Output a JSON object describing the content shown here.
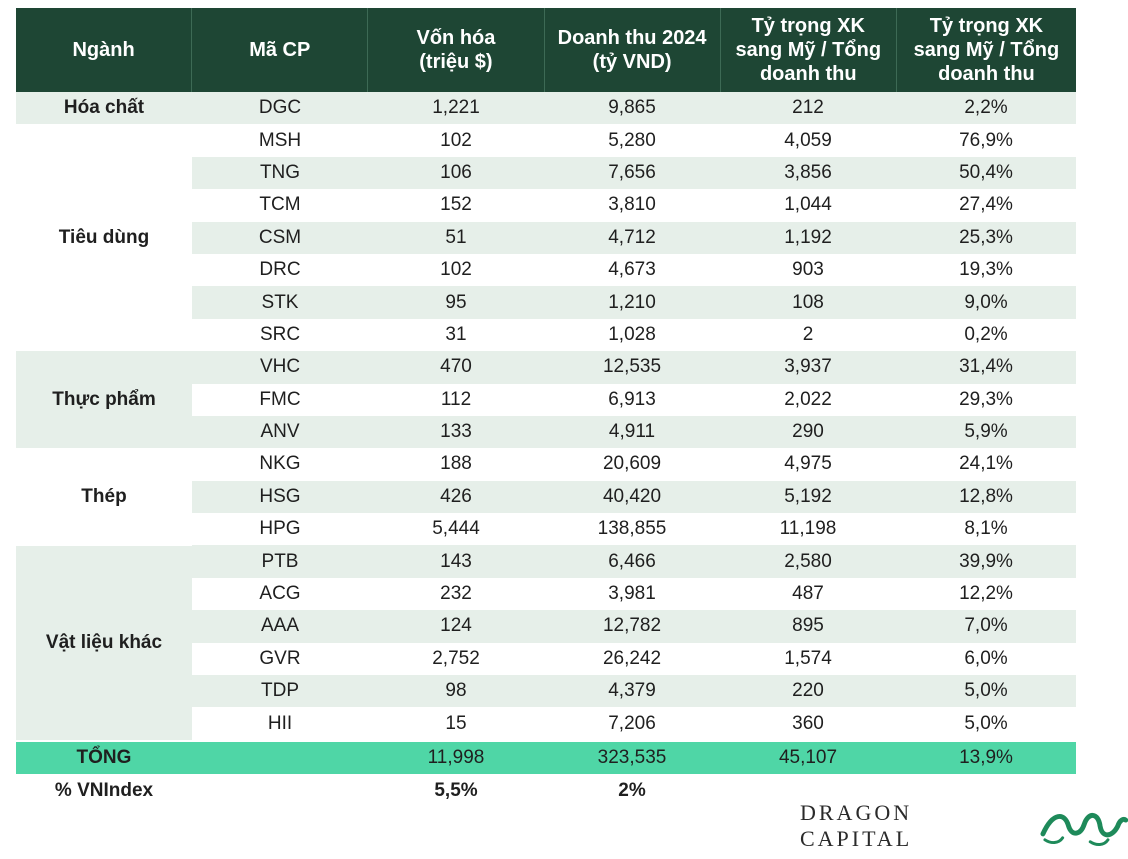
{
  "headers": [
    "Ngành",
    "Mã CP",
    "Vốn hóa (triệu $)",
    "Doanh thu 2024 (tỷ VND)",
    "Tỷ trọng XK sang Mỹ / Tổng doanh thu",
    "Tỷ trọng XK sang Mỹ / Tổng doanh thu"
  ],
  "groups": [
    "Hóa chất",
    "Tiêu dùng",
    "Thực phẩm",
    "Thép",
    "Vật liệu khác"
  ],
  "rows": [
    [
      "DGC",
      "1,221",
      "9,865",
      "212",
      "2,2%"
    ],
    [
      "MSH",
      "102",
      "5,280",
      "4,059",
      "76,9%"
    ],
    [
      "TNG",
      "106",
      "7,656",
      "3,856",
      "50,4%"
    ],
    [
      "TCM",
      "152",
      "3,810",
      "1,044",
      "27,4%"
    ],
    [
      "CSM",
      "51",
      "4,712",
      "1,192",
      "25,3%"
    ],
    [
      "DRC",
      "102",
      "4,673",
      "903",
      "19,3%"
    ],
    [
      "STK",
      "95",
      "1,210",
      "108",
      "9,0%"
    ],
    [
      "SRC",
      "31",
      "1,028",
      "2",
      "0,2%"
    ],
    [
      "VHC",
      "470",
      "12,535",
      "3,937",
      "31,4%"
    ],
    [
      "FMC",
      "112",
      "6,913",
      "2,022",
      "29,3%"
    ],
    [
      "ANV",
      "133",
      "4,911",
      "290",
      "5,9%"
    ],
    [
      "NKG",
      "188",
      "20,609",
      "4,975",
      "24,1%"
    ],
    [
      "HSG",
      "426",
      "40,420",
      "5,192",
      "12,8%"
    ],
    [
      "HPG",
      "5,444",
      "138,855",
      "11,198",
      "8,1%"
    ],
    [
      "PTB",
      "143",
      "6,466",
      "2,580",
      "39,9%"
    ],
    [
      "ACG",
      "232",
      "3,981",
      "487",
      "12,2%"
    ],
    [
      "AAA",
      "124",
      "12,782",
      "895",
      "7,0%"
    ],
    [
      "GVR",
      "2,752",
      "26,242",
      "1,574",
      "6,0%"
    ],
    [
      "TDP",
      "98",
      "4,379",
      "220",
      "5,0%"
    ],
    [
      "HII",
      "15",
      "7,206",
      "360",
      "5,0%"
    ]
  ],
  "total": [
    "TỔNG",
    "",
    "11,998",
    "323,535",
    "45,107",
    "13,9%"
  ],
  "vnindex": [
    "% VNIndex",
    "",
    "5,5%",
    "2%",
    "",
    ""
  ],
  "logo_text": "DRAGON CAPITAL",
  "colors": {
    "header": "#1e4634",
    "stripe": "#e6efe9",
    "total": "#4fd6a6"
  }
}
